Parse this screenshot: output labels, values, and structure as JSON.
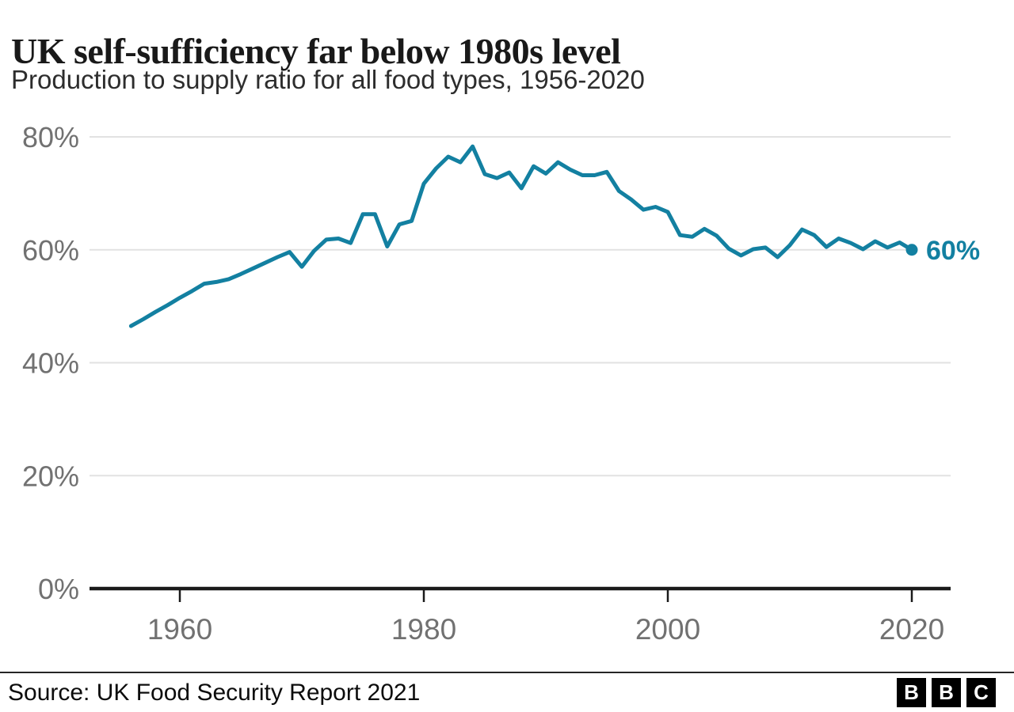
{
  "header": {
    "title": "UK self-sufficiency far below 1980s level",
    "subtitle": "Production to supply ratio for all food types, 1956-2020"
  },
  "chart_data": {
    "type": "line",
    "title": "UK self-sufficiency far below 1980s level",
    "subtitle": "Production to supply ratio for all food types, 1956-2020",
    "x": [
      1956,
      1957,
      1958,
      1959,
      1960,
      1961,
      1962,
      1963,
      1964,
      1965,
      1966,
      1967,
      1968,
      1969,
      1970,
      1971,
      1972,
      1973,
      1974,
      1975,
      1976,
      1977,
      1978,
      1979,
      1980,
      1981,
      1982,
      1983,
      1984,
      1985,
      1986,
      1987,
      1988,
      1989,
      1990,
      1991,
      1992,
      1993,
      1994,
      1995,
      1996,
      1997,
      1998,
      1999,
      2000,
      2001,
      2002,
      2003,
      2004,
      2005,
      2006,
      2007,
      2008,
      2009,
      2010,
      2011,
      2012,
      2013,
      2014,
      2015,
      2016,
      2017,
      2018,
      2019,
      2020
    ],
    "series": [
      {
        "name": "Production to supply ratio, all food types",
        "values": [
          46.5,
          47.7,
          49.0,
          50.2,
          51.5,
          52.7,
          54.0,
          54.3,
          54.8,
          55.7,
          56.7,
          57.7,
          58.7,
          59.6,
          57.0,
          59.8,
          61.8,
          62.0,
          61.2,
          66.3,
          66.3,
          60.6,
          64.5,
          65.1,
          71.7,
          74.4,
          76.5,
          75.5,
          78.3,
          73.4,
          72.7,
          73.7,
          70.9,
          74.8,
          73.5,
          75.5,
          74.2,
          73.2,
          73.2,
          73.8,
          70.4,
          68.9,
          67.1,
          67.6,
          66.7,
          62.6,
          62.3,
          63.7,
          62.5,
          60.2,
          59.0,
          60.1,
          60.4,
          58.7,
          60.8,
          63.6,
          62.6,
          60.5,
          62.0,
          61.2,
          60.1,
          61.5,
          60.4,
          61.3,
          60.0
        ]
      }
    ],
    "xlabel": "",
    "ylabel": "",
    "ylim": [
      0,
      80
    ],
    "yticks": [
      0,
      20,
      40,
      60,
      80
    ],
    "ytick_suffix": "%",
    "xticks": [
      1960,
      1980,
      2000,
      2020
    ],
    "grid": true,
    "legend_position": "none",
    "end_label": "60%",
    "colors": {
      "line": "#1380A1",
      "grid": "#e2e2e2",
      "axis": "#1a1a1a",
      "tick_label": "#717171"
    }
  },
  "footer": {
    "source": "Source: UK Food Security Report 2021",
    "logo_letters": [
      "B",
      "B",
      "C"
    ]
  }
}
